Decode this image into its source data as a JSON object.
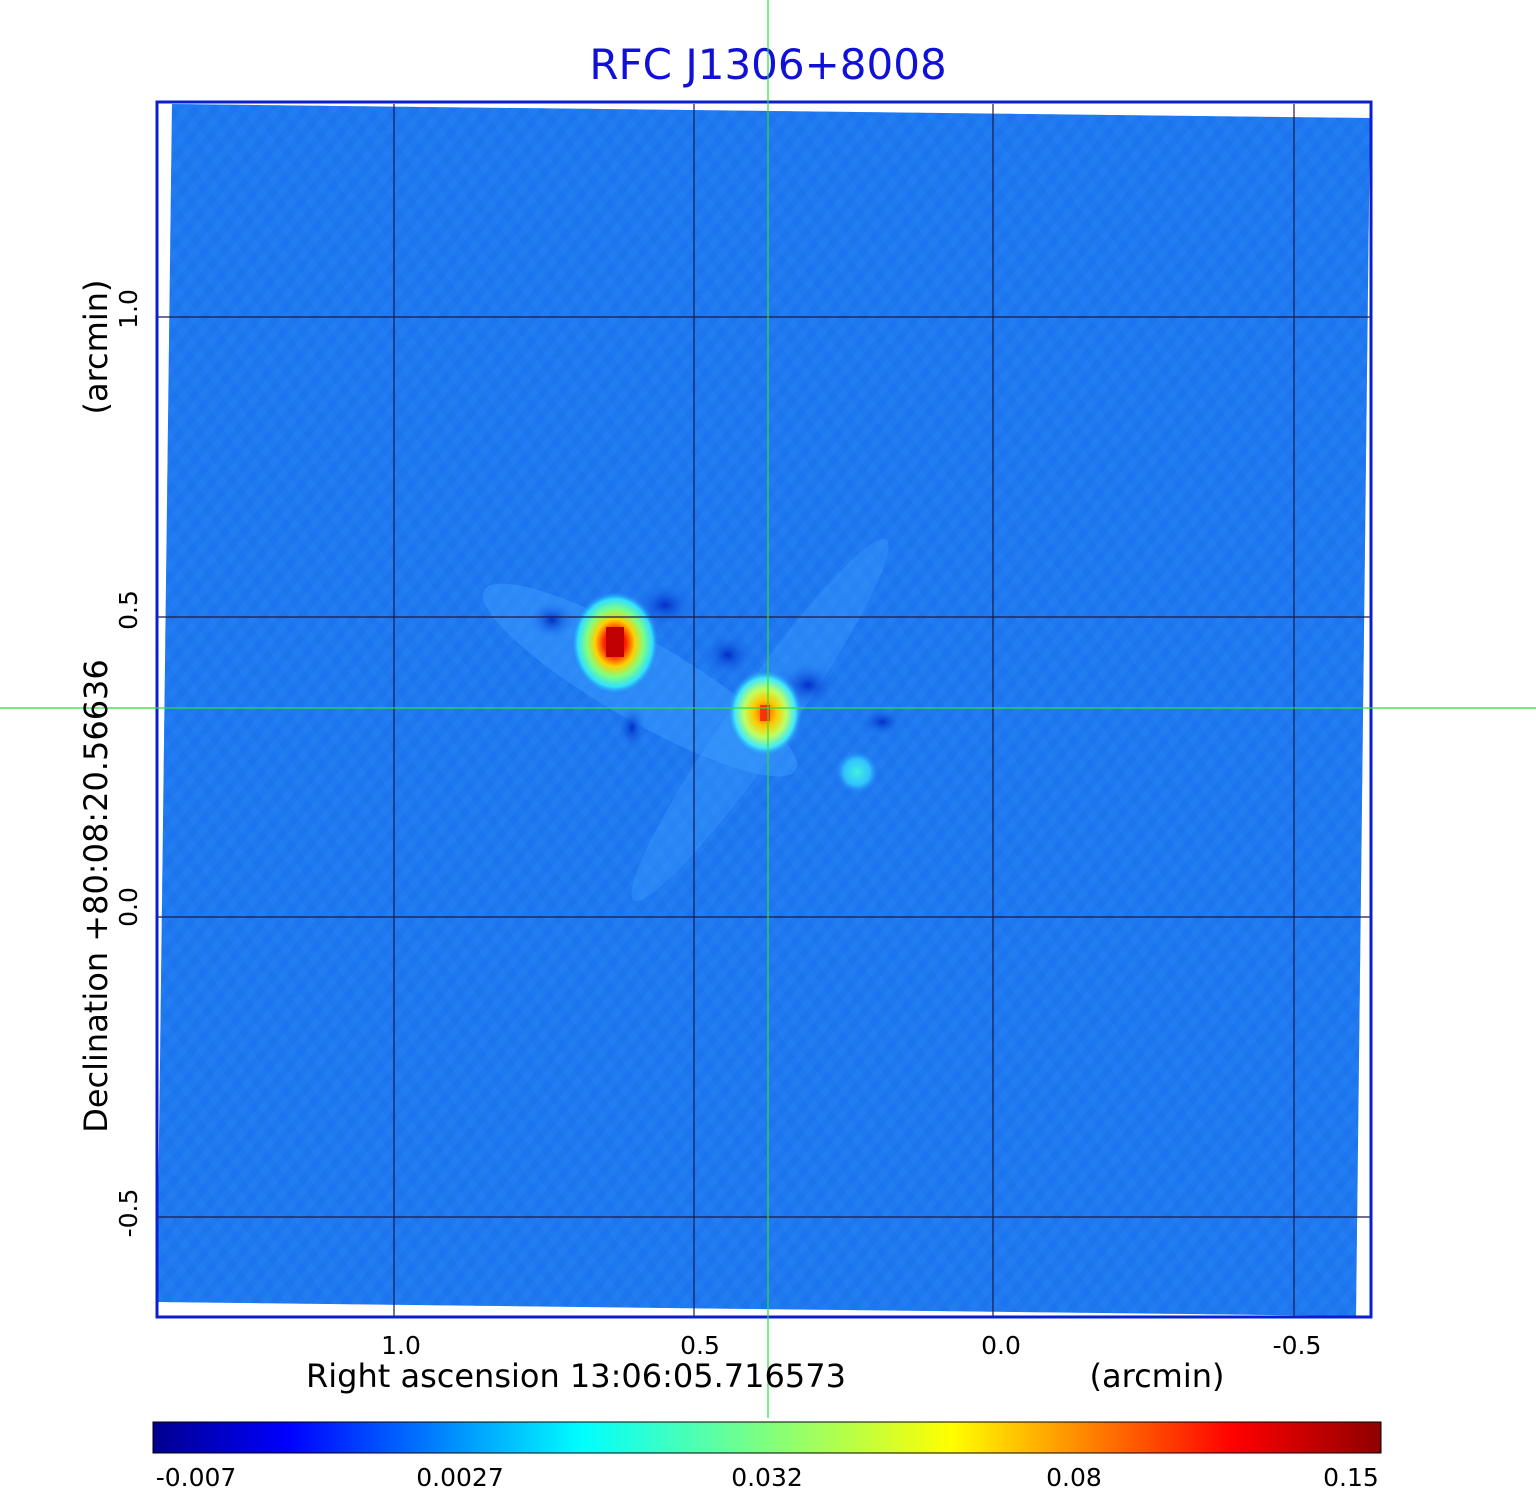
{
  "title": "RFC J1306+8008",
  "x_axis": {
    "label": "Right ascension  13:06:05.716573",
    "unit": "(arcmin)",
    "ticks": [
      "1.0",
      "0.5",
      "0.0",
      "-0.5"
    ]
  },
  "y_axis": {
    "label": "Declination  +80:08:20.56636",
    "unit": "(arcmin)",
    "ticks": [
      "-0.5",
      "0.0",
      "0.5",
      "1.0"
    ]
  },
  "colorbar": {
    "labels": [
      "-0.007",
      "0.0027",
      "0.032",
      "0.08",
      "0.15"
    ],
    "colormap": "jet"
  },
  "colors": {
    "title": "#1010d8",
    "frame": "#0a1fd0",
    "crosshair": "#2adf3a",
    "background_field": "#1e78f0"
  },
  "chart_data": {
    "type": "heatmap",
    "title": "RFC J1306+8008",
    "xlabel": "Right ascension  13:06:05.716573 (arcmin)",
    "ylabel": "Declination  +80:08:20.56636 (arcmin)",
    "x_ticks": [
      1.0,
      0.5,
      0.0,
      -0.5
    ],
    "y_ticks": [
      -0.5,
      0.0,
      0.5,
      1.0
    ],
    "color_range": [
      -0.007,
      0.15
    ],
    "colorbar_ticks": [
      -0.007,
      0.0027,
      0.032,
      0.08,
      0.15
    ],
    "grid": true,
    "crosshair": true,
    "sources": [
      {
        "ra_offset_arcmin": 0.63,
        "dec_offset_arcmin": 0.46,
        "peak": 0.15
      },
      {
        "ra_offset_arcmin": 0.38,
        "dec_offset_arcmin": 0.34,
        "peak": 0.11
      },
      {
        "ra_offset_arcmin": 0.23,
        "dec_offset_arcmin": 0.24,
        "peak": 0.03
      }
    ]
  }
}
